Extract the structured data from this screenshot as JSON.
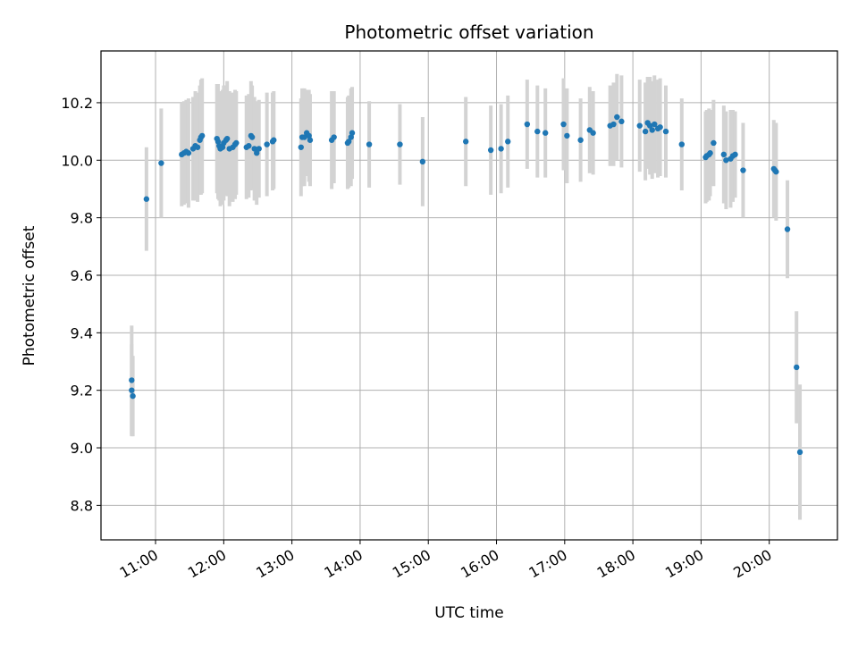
{
  "chart_data": {
    "type": "scatter",
    "title": "Photometric offset variation",
    "xlabel": "UTC time",
    "ylabel": "Photometric offset",
    "x_unit": "hours UTC",
    "xlim": [
      "10:12",
      "21:00"
    ],
    "ylim": [
      8.68,
      10.38
    ],
    "x_ticks": [
      "11:00",
      "12:00",
      "13:00",
      "14:00",
      "15:00",
      "16:00",
      "17:00",
      "18:00",
      "19:00",
      "20:00"
    ],
    "y_ticks": [
      "8.8",
      "9.0",
      "9.2",
      "9.4",
      "9.6",
      "9.8",
      "10.0",
      "10.2"
    ],
    "grid": true,
    "colors": {
      "points": "#1f77b4",
      "errorbars": "#d3d3d3",
      "grid": "#b0b0b0"
    },
    "points": [
      {
        "x": "10:39",
        "y": 9.235,
        "err": 0.19
      },
      {
        "x": "10:39",
        "y": 9.2,
        "err": 0.16
      },
      {
        "x": "10:40",
        "y": 9.18,
        "err": 0.14
      },
      {
        "x": "10:52",
        "y": 9.865,
        "err": 0.18
      },
      {
        "x": "11:05",
        "y": 9.99,
        "err": 0.19
      },
      {
        "x": "11:23",
        "y": 10.02,
        "err": 0.18
      },
      {
        "x": "11:25",
        "y": 10.025,
        "err": 0.18
      },
      {
        "x": "11:27",
        "y": 10.03,
        "err": 0.18
      },
      {
        "x": "11:29",
        "y": 10.025,
        "err": 0.19
      },
      {
        "x": "11:33",
        "y": 10.04,
        "err": 0.18
      },
      {
        "x": "11:35",
        "y": 10.05,
        "err": 0.19
      },
      {
        "x": "11:37",
        "y": 10.045,
        "err": 0.19
      },
      {
        "x": "11:39",
        "y": 10.07,
        "err": 0.19
      },
      {
        "x": "11:40",
        "y": 10.08,
        "err": 0.2
      },
      {
        "x": "11:41",
        "y": 10.085,
        "err": 0.2
      },
      {
        "x": "11:54",
        "y": 10.075,
        "err": 0.19
      },
      {
        "x": "11:55",
        "y": 10.065,
        "err": 0.2
      },
      {
        "x": "11:56",
        "y": 10.05,
        "err": 0.19
      },
      {
        "x": "11:57",
        "y": 10.04,
        "err": 0.2
      },
      {
        "x": "11:59",
        "y": 10.045,
        "err": 0.2
      },
      {
        "x": "12:00",
        "y": 10.06,
        "err": 0.2
      },
      {
        "x": "12:02",
        "y": 10.07,
        "err": 0.19
      },
      {
        "x": "12:03",
        "y": 10.075,
        "err": 0.2
      },
      {
        "x": "12:05",
        "y": 10.04,
        "err": 0.2
      },
      {
        "x": "12:08",
        "y": 10.045,
        "err": 0.19
      },
      {
        "x": "12:10",
        "y": 10.055,
        "err": 0.19
      },
      {
        "x": "12:11",
        "y": 10.06,
        "err": 0.18
      },
      {
        "x": "12:20",
        "y": 10.045,
        "err": 0.18
      },
      {
        "x": "12:22",
        "y": 10.05,
        "err": 0.18
      },
      {
        "x": "12:24",
        "y": 10.085,
        "err": 0.19
      },
      {
        "x": "12:25",
        "y": 10.08,
        "err": 0.18
      },
      {
        "x": "12:27",
        "y": 10.04,
        "err": 0.18
      },
      {
        "x": "12:29",
        "y": 10.025,
        "err": 0.18
      },
      {
        "x": "12:31",
        "y": 10.04,
        "err": 0.17
      },
      {
        "x": "12:38",
        "y": 10.055,
        "err": 0.18
      },
      {
        "x": "12:43",
        "y": 10.065,
        "err": 0.17
      },
      {
        "x": "12:44",
        "y": 10.07,
        "err": 0.17
      },
      {
        "x": "13:08",
        "y": 10.045,
        "err": 0.17
      },
      {
        "x": "13:09",
        "y": 10.08,
        "err": 0.17
      },
      {
        "x": "13:11",
        "y": 10.08,
        "err": 0.17
      },
      {
        "x": "13:13",
        "y": 10.095,
        "err": 0.15
      },
      {
        "x": "13:15",
        "y": 10.085,
        "err": 0.16
      },
      {
        "x": "13:16",
        "y": 10.07,
        "err": 0.16
      },
      {
        "x": "13:35",
        "y": 10.07,
        "err": 0.17
      },
      {
        "x": "13:37",
        "y": 10.08,
        "err": 0.16
      },
      {
        "x": "13:49",
        "y": 10.06,
        "err": 0.16
      },
      {
        "x": "13:50",
        "y": 10.065,
        "err": 0.16
      },
      {
        "x": "13:52",
        "y": 10.08,
        "err": 0.17
      },
      {
        "x": "13:53",
        "y": 10.095,
        "err": 0.16
      },
      {
        "x": "14:08",
        "y": 10.055,
        "err": 0.15
      },
      {
        "x": "14:35",
        "y": 10.055,
        "err": 0.14
      },
      {
        "x": "14:55",
        "y": 9.995,
        "err": 0.155
      },
      {
        "x": "15:33",
        "y": 10.065,
        "err": 0.155
      },
      {
        "x": "15:55",
        "y": 10.035,
        "err": 0.155
      },
      {
        "x": "16:04",
        "y": 10.04,
        "err": 0.155
      },
      {
        "x": "16:10",
        "y": 10.065,
        "err": 0.16
      },
      {
        "x": "16:27",
        "y": 10.125,
        "err": 0.155
      },
      {
        "x": "16:36",
        "y": 10.1,
        "err": 0.16
      },
      {
        "x": "16:43",
        "y": 10.095,
        "err": 0.155
      },
      {
        "x": "16:59",
        "y": 10.125,
        "err": 0.16
      },
      {
        "x": "17:02",
        "y": 10.085,
        "err": 0.165
      },
      {
        "x": "17:14",
        "y": 10.07,
        "err": 0.145
      },
      {
        "x": "17:22",
        "y": 10.105,
        "err": 0.15
      },
      {
        "x": "17:25",
        "y": 10.095,
        "err": 0.145
      },
      {
        "x": "17:40",
        "y": 10.12,
        "err": 0.14
      },
      {
        "x": "17:43",
        "y": 10.125,
        "err": 0.145
      },
      {
        "x": "17:46",
        "y": 10.15,
        "err": 0.15
      },
      {
        "x": "17:50",
        "y": 10.135,
        "err": 0.16
      },
      {
        "x": "18:06",
        "y": 10.12,
        "err": 0.16
      },
      {
        "x": "18:11",
        "y": 10.1,
        "err": 0.17
      },
      {
        "x": "18:13",
        "y": 10.13,
        "err": 0.16
      },
      {
        "x": "18:15",
        "y": 10.12,
        "err": 0.17
      },
      {
        "x": "18:17",
        "y": 10.105,
        "err": 0.17
      },
      {
        "x": "18:19",
        "y": 10.125,
        "err": 0.17
      },
      {
        "x": "18:22",
        "y": 10.11,
        "err": 0.17
      },
      {
        "x": "18:24",
        "y": 10.115,
        "err": 0.17
      },
      {
        "x": "18:29",
        "y": 10.1,
        "err": 0.16
      },
      {
        "x": "18:43",
        "y": 10.055,
        "err": 0.16
      },
      {
        "x": "19:04",
        "y": 10.01,
        "err": 0.16
      },
      {
        "x": "19:05",
        "y": 10.015,
        "err": 0.16
      },
      {
        "x": "19:07",
        "y": 10.02,
        "err": 0.16
      },
      {
        "x": "19:08",
        "y": 10.025,
        "err": 0.15
      },
      {
        "x": "19:11",
        "y": 10.06,
        "err": 0.15
      },
      {
        "x": "19:20",
        "y": 10.02,
        "err": 0.17
      },
      {
        "x": "19:22",
        "y": 10.0,
        "err": 0.17
      },
      {
        "x": "19:26",
        "y": 10.005,
        "err": 0.17
      },
      {
        "x": "19:28",
        "y": 10.015,
        "err": 0.16
      },
      {
        "x": "19:30",
        "y": 10.02,
        "err": 0.15
      },
      {
        "x": "19:37",
        "y": 9.965,
        "err": 0.165
      },
      {
        "x": "20:04",
        "y": 9.97,
        "err": 0.17
      },
      {
        "x": "20:05",
        "y": 9.965,
        "err": 0.16
      },
      {
        "x": "20:06",
        "y": 9.96,
        "err": 0.17
      },
      {
        "x": "20:16",
        "y": 9.76,
        "err": 0.17
      },
      {
        "x": "20:24",
        "y": 9.28,
        "err": 0.195
      },
      {
        "x": "20:27",
        "y": 8.985,
        "err": 0.235
      }
    ]
  }
}
